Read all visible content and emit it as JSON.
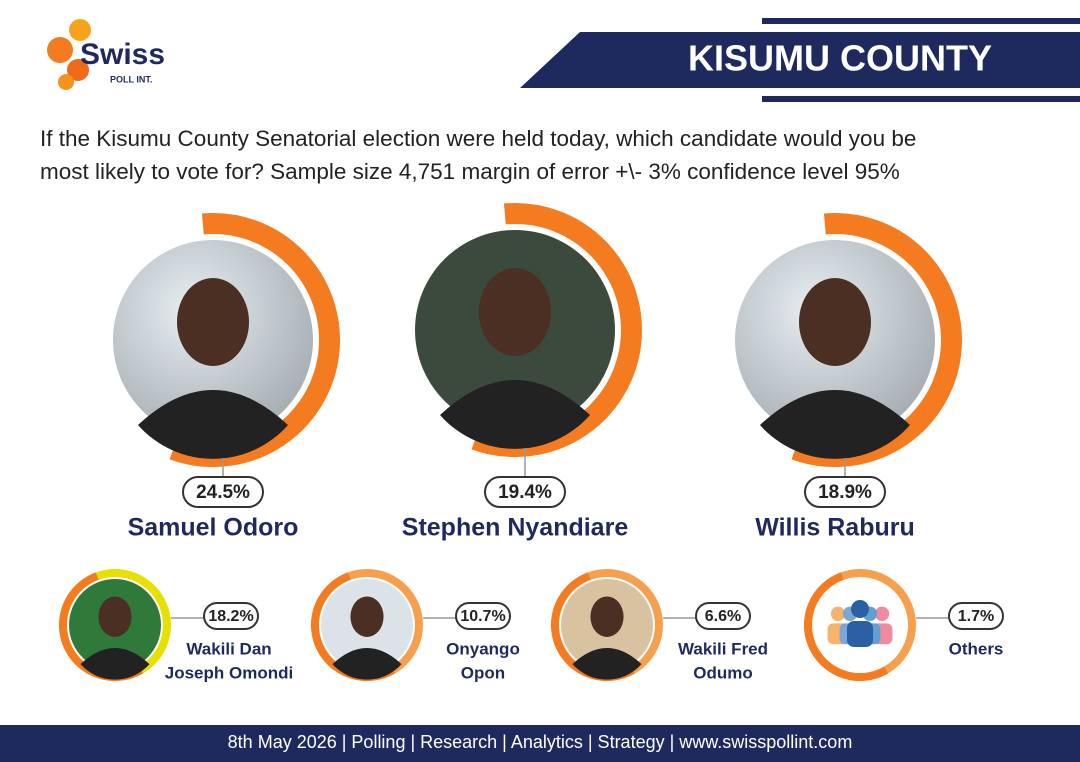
{
  "logo": {
    "name": "Swiss",
    "tagline": "POLL INT."
  },
  "header": {
    "title": "KISUMU COUNTY"
  },
  "question": {
    "lines": [
      "If the Kisumu County Senatorial election were held today, which candidate would you be",
      "most likely to vote for? Sample size 4,751 margin of error +\\- 3% confidence level 95%"
    ]
  },
  "leaders": [
    {
      "share": "24.5%",
      "name": "Samuel Odoro"
    },
    {
      "share": "19.4%",
      "name": "Stephen Nyandiare"
    },
    {
      "share": "18.9%",
      "name": "Willis Raburu"
    }
  ],
  "others": [
    {
      "share": "18.2%",
      "name_lines": [
        "Wakili Dan",
        "Joseph Omondi"
      ]
    },
    {
      "share": "10.7%",
      "name_lines": [
        "Onyango",
        "Opon"
      ]
    },
    {
      "share": "6.6%",
      "name_lines": [
        "Wakili Fred",
        "Odumo"
      ]
    },
    {
      "share": "1.7%",
      "name_lines": [
        "Others"
      ]
    }
  ],
  "footer": {
    "text": "8th May 2026 | Polling | Research | Analytics | Strategy | www.swisspollint.com"
  }
}
